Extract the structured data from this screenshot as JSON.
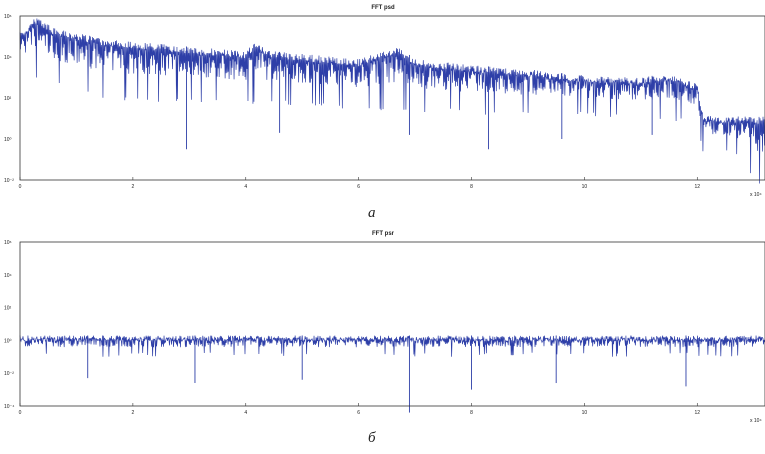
{
  "chart_data": [
    {
      "type": "line",
      "title": "FFT psd",
      "x_range": [
        0,
        13.2
      ],
      "x_ticks": [
        "0",
        "2",
        "4",
        "6",
        "8",
        "10",
        "12"
      ],
      "x_multiplier": "x 10⁴",
      "y_scale": "log",
      "y_ticks": [
        "10⁶",
        "10⁴",
        "10²",
        "10⁰",
        "10⁻²"
      ],
      "series": [
        {
          "color": "#2e3fa8",
          "envelope_top": [
            [
              0,
              5.2
            ],
            [
              0.3,
              6.0
            ],
            [
              0.6,
              5.4
            ],
            [
              1.5,
              4.9
            ],
            [
              3,
              4.5
            ],
            [
              4,
              4.3
            ],
            [
              4.2,
              4.8
            ],
            [
              4.4,
              4.3
            ],
            [
              6,
              3.9
            ],
            [
              6.7,
              4.5
            ],
            [
              7,
              3.9
            ],
            [
              8,
              3.6
            ],
            [
              9,
              3.4
            ],
            [
              10,
              3.1
            ],
            [
              11,
              3.0
            ],
            [
              11.5,
              3.2
            ],
            [
              12,
              2.7
            ],
            [
              12.1,
              1.2
            ],
            [
              12.3,
              1.1
            ],
            [
              13.2,
              1.1
            ]
          ],
          "envelope_bottom": [
            [
              0,
              3.2
            ],
            [
              1,
              2.2
            ],
            [
              2,
              1.8
            ],
            [
              3,
              1.8
            ],
            [
              4,
              1.7
            ],
            [
              5,
              1.6
            ],
            [
              6,
              1.4
            ],
            [
              7,
              1.3
            ],
            [
              8,
              1.2
            ],
            [
              9,
              1.1
            ],
            [
              10,
              1.1
            ],
            [
              11,
              1.0
            ],
            [
              12,
              0.8
            ],
            [
              12.1,
              -0.7
            ],
            [
              12.6,
              -0.6
            ],
            [
              13.2,
              -2.6
            ]
          ],
          "dips": [
            [
              2.95,
              -0.5
            ],
            [
              4.6,
              0.3
            ],
            [
              6.9,
              0.2
            ],
            [
              8.3,
              -0.5
            ],
            [
              9.6,
              0.0
            ],
            [
              11.2,
              0.2
            ]
          ]
        }
      ]
    },
    {
      "type": "line",
      "title": "FFT psr",
      "x_range": [
        0,
        13.2
      ],
      "x_ticks": [
        "0",
        "2",
        "4",
        "6",
        "8",
        "10",
        "12"
      ],
      "x_multiplier": "x 10⁴",
      "y_scale": "log",
      "y_ticks": [
        "10⁶",
        "10⁴",
        "10²",
        "10⁰",
        "10⁻²",
        "10⁻⁴"
      ],
      "series": [
        {
          "color": "#2e3fa8",
          "envelope_top": [
            [
              0,
              0.3
            ],
            [
              13.2,
              0.3
            ]
          ],
          "envelope_bottom": [
            [
              0,
              -1.0
            ],
            [
              13.2,
              -1.0
            ]
          ],
          "dips": [
            [
              1.2,
              -2.3
            ],
            [
              3.1,
              -2.6
            ],
            [
              5.0,
              -2.4
            ],
            [
              6.9,
              -4.4
            ],
            [
              8.0,
              -3.0
            ],
            [
              9.5,
              -2.6
            ],
            [
              11.8,
              -2.8
            ]
          ]
        }
      ]
    }
  ],
  "captions": [
    "a",
    "б"
  ]
}
